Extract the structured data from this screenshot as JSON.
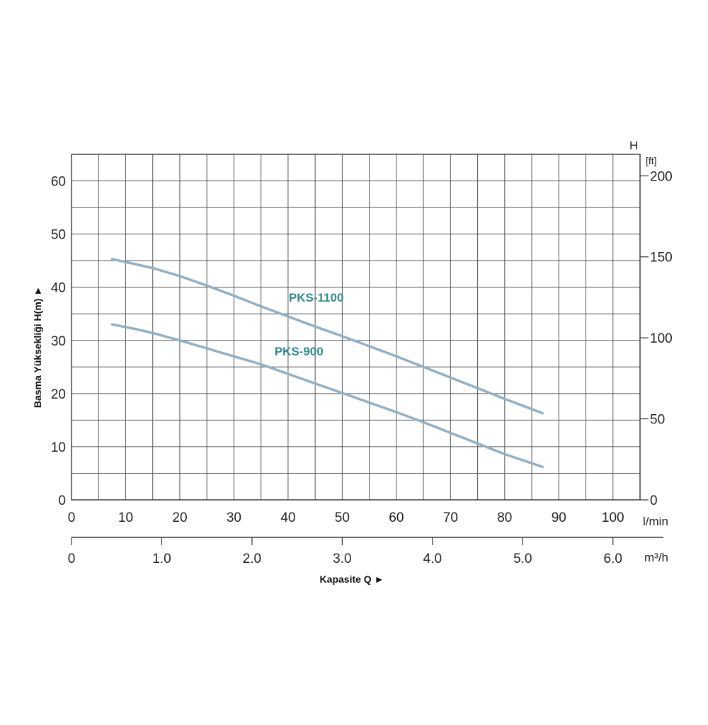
{
  "chart_data": {
    "type": "line",
    "xlabel": "Kapasite Q ►",
    "ylabel": "Basma Yüksekliği H(m) ►",
    "x_unit": "l/min",
    "x2_unit": "m³/h",
    "y2_title": "H",
    "y2_unit": "[ft]",
    "xlim": [
      0,
      105
    ],
    "ylim": [
      0,
      65
    ],
    "x_ticks": [
      0,
      10,
      20,
      30,
      40,
      50,
      60,
      70,
      80,
      90,
      100
    ],
    "x_tick_labels": [
      "0",
      "10",
      "20",
      "30",
      "40",
      "50",
      "60",
      "70",
      "80",
      "90",
      "100"
    ],
    "y_ticks": [
      0,
      10,
      20,
      30,
      40,
      50,
      60
    ],
    "y_tick_labels": [
      "0",
      "10",
      "20",
      "30",
      "40",
      "50",
      "60"
    ],
    "x2_ticks": [
      0,
      1.0,
      2.0,
      3.0,
      4.0,
      5.0,
      6.0
    ],
    "x2_tick_labels": [
      "0",
      "1.0",
      "2.0",
      "3.0",
      "4.0",
      "5.0",
      "6.0"
    ],
    "y2_ticks": [
      0,
      50,
      100,
      150,
      200
    ],
    "y2_tick_labels": [
      "0",
      "50",
      "100",
      "150",
      "200"
    ],
    "grid": true,
    "line_color": "#8fb0c8",
    "label_color": "#2f8a8a",
    "series": [
      {
        "name": "PKS-1100",
        "x": [
          7.5,
          12,
          15,
          20,
          25,
          30,
          35,
          40,
          45,
          50,
          55,
          60,
          65,
          70,
          75,
          80,
          87
        ],
        "y": [
          45.3,
          44.3,
          43.6,
          42.1,
          40.3,
          38.4,
          36.4,
          34.5,
          32.6,
          30.8,
          28.9,
          27,
          25,
          23,
          21,
          19,
          16.3
        ]
      },
      {
        "name": "PKS-900",
        "x": [
          7.5,
          12,
          15,
          20,
          25,
          30,
          35,
          40,
          45,
          50,
          55,
          60,
          65,
          70,
          75,
          80,
          87
        ],
        "y": [
          33,
          32.1,
          31.4,
          30,
          28.5,
          27,
          25.5,
          23.7,
          21.9,
          20.1,
          18.3,
          16.5,
          14.6,
          12.6,
          10.6,
          8.6,
          6.2
        ]
      }
    ]
  }
}
